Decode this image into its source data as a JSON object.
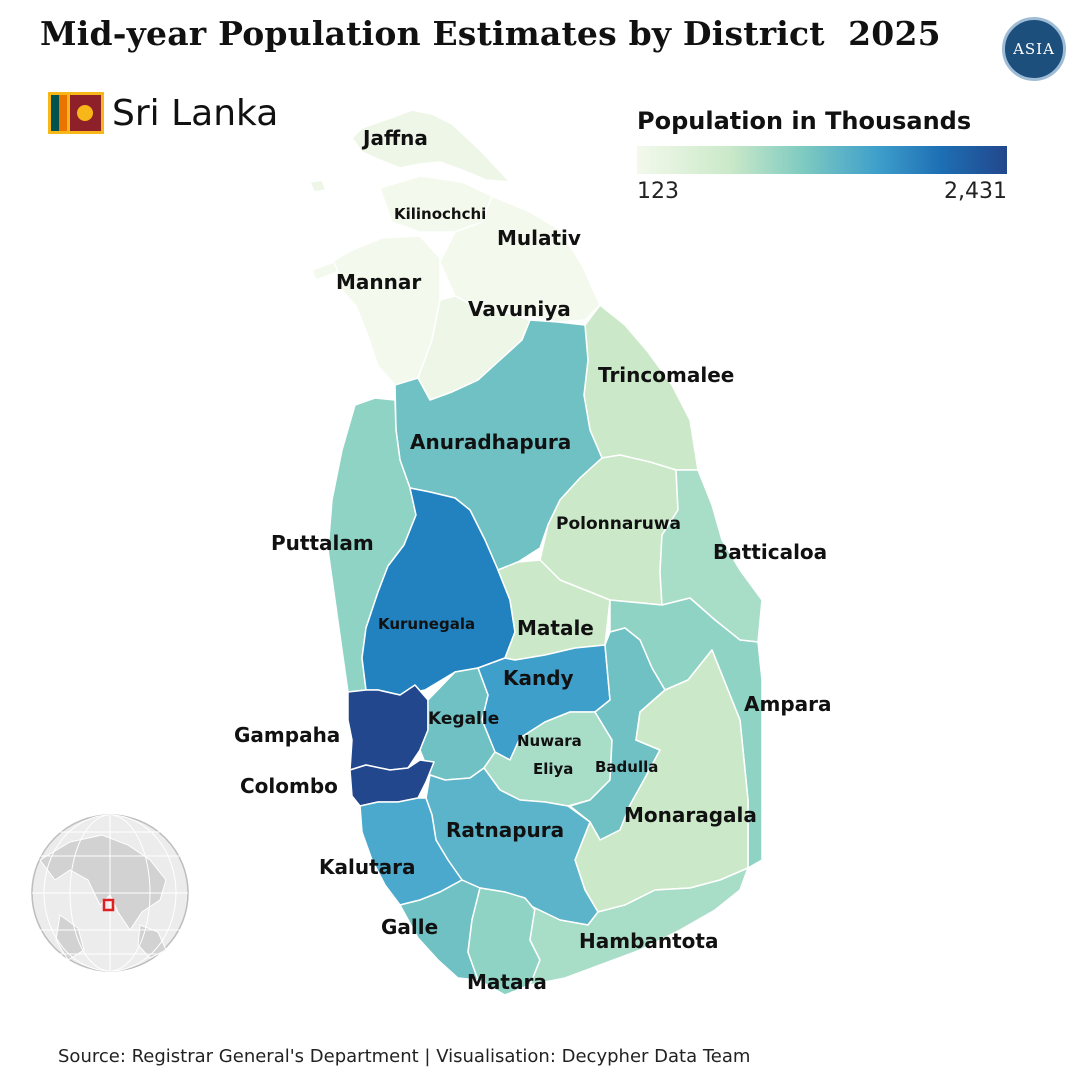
{
  "title": "Mid-year Population Estimates by District  2025",
  "logo_text": "ASIA",
  "country": "Sri Lanka",
  "legend": {
    "title": "Population in Thousands",
    "min": "123",
    "max": "2,431",
    "colors": [
      "#f3f9ec",
      "#cbe9c9",
      "#7ecac1",
      "#3f9fcb",
      "#1e6fb4",
      "#22478c"
    ]
  },
  "districts": {
    "jaffna": "Jaffna",
    "kilinochchi": "Kilinochchi",
    "mulativ": "Mulativ",
    "mannar": "Mannar",
    "vavuniya": "Vavuniya",
    "trincomalee": "Trincomalee",
    "anuradhapura": "Anuradhapura",
    "polonnaruwa": "Polonnaruwa",
    "batticaloa": "Batticaloa",
    "puttalam": "Puttalam",
    "kurunegala": "Kurunegala",
    "matale": "Matale",
    "kandy": "Kandy",
    "ampara": "Ampara",
    "gampaha": "Gampaha",
    "kegalle": "Kegalle",
    "nuwara_1": "Nuwara",
    "nuwara_2": "Eliya",
    "badulla": "Badulla",
    "colombo": "Colombo",
    "ratnapura": "Ratnapura",
    "monaragala": "Monaragala",
    "kalutara": "Kalutara",
    "galle": "Galle",
    "hambantota": "Hambantota",
    "matara": "Matara"
  },
  "source": "Source: Registrar General's Department | Visualisation: Decypher Data Team"
}
